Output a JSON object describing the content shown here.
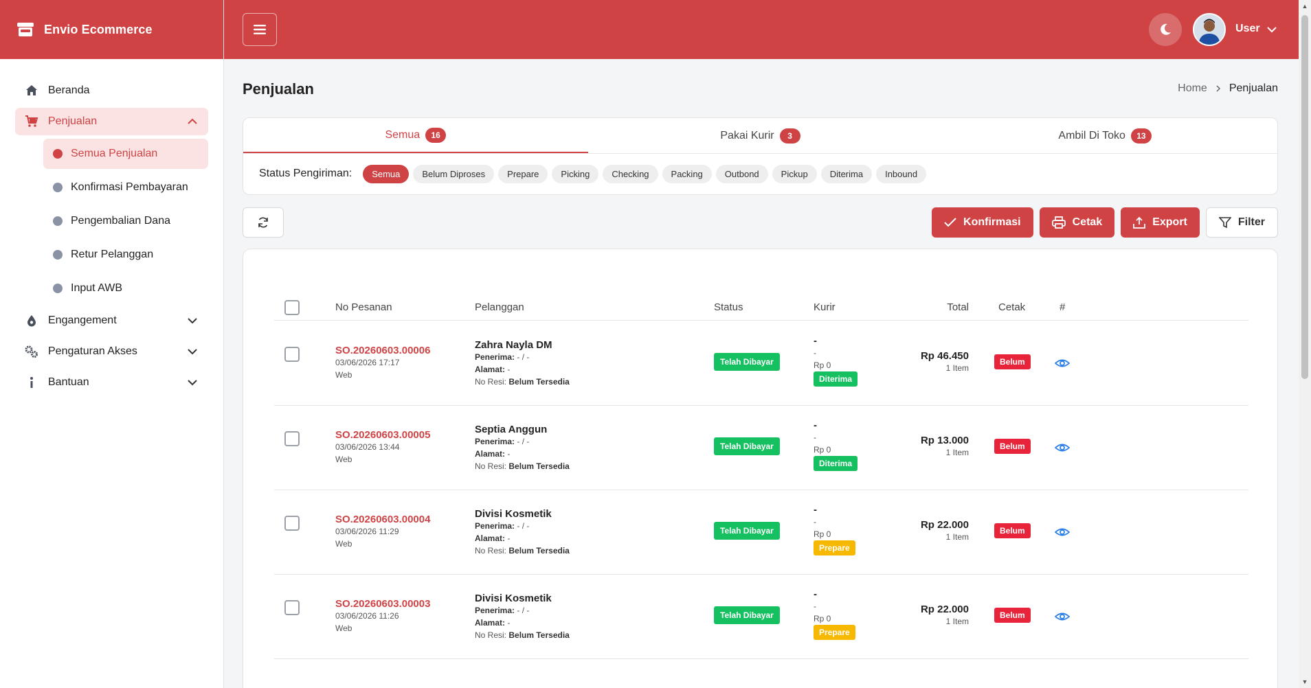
{
  "brand": {
    "name": "Envio Ecommerce"
  },
  "sidebar": {
    "items": [
      {
        "label": "Beranda"
      },
      {
        "label": "Penjualan"
      },
      {
        "label": "Engangement"
      },
      {
        "label": "Pengaturan Akses"
      },
      {
        "label": "Bantuan"
      }
    ],
    "sub_items": [
      {
        "label": "Semua Penjualan"
      },
      {
        "label": "Konfirmasi Pembayaran"
      },
      {
        "label": "Pengembalian Dana"
      },
      {
        "label": "Retur Pelanggan"
      },
      {
        "label": "Input AWB"
      }
    ]
  },
  "topbar": {
    "user": "User"
  },
  "page": {
    "title": "Penjualan",
    "breadcrumb": [
      "Home",
      "Penjualan"
    ]
  },
  "tabs": [
    {
      "label": "Semua",
      "count": "16"
    },
    {
      "label": "Pakai Kurir",
      "count": "3"
    },
    {
      "label": "Ambil Di Toko",
      "count": "13"
    }
  ],
  "status_filter": {
    "label": "Status Pengiriman:",
    "options": [
      "Semua",
      "Belum Diproses",
      "Prepare",
      "Picking",
      "Checking",
      "Packing",
      "Outbond",
      "Pickup",
      "Diterima",
      "Inbound"
    ]
  },
  "actions": {
    "konfirmasi": "Konfirmasi",
    "cetak": "Cetak",
    "export": "Export",
    "filter": "Filter"
  },
  "table": {
    "headers": {
      "no_pesanan": "No Pesanan",
      "pelanggan": "Pelanggan",
      "status": "Status",
      "kurir": "Kurir",
      "total": "Total",
      "cetak": "Cetak",
      "hash": "#"
    },
    "labels": {
      "penerima": "Penerima:",
      "alamat": "Alamat:",
      "no_resi": "No Resi:"
    },
    "rows": [
      {
        "order_no": "SO.20260603.00006",
        "datetime": "03/06/2026 17:17",
        "channel": "Web",
        "customer": "Zahra Nayla DM",
        "penerima": "- / -",
        "alamat": "-",
        "no_resi": "Belum Tersedia",
        "status": "Telah Dibayar",
        "kurir_name": "-",
        "kurir_service": "-",
        "kurir_cost": "Rp 0",
        "kurir_status": "Diterima",
        "total": "Rp 46.450",
        "items": "1 Item",
        "cetak": "Belum"
      },
      {
        "order_no": "SO.20260603.00005",
        "datetime": "03/06/2026 13:44",
        "channel": "Web",
        "customer": "Septia Anggun",
        "penerima": "- / -",
        "alamat": "-",
        "no_resi": "Belum Tersedia",
        "status": "Telah Dibayar",
        "kurir_name": "-",
        "kurir_service": "-",
        "kurir_cost": "Rp 0",
        "kurir_status": "Diterima",
        "total": "Rp 13.000",
        "items": "1 Item",
        "cetak": "Belum"
      },
      {
        "order_no": "SO.20260603.00004",
        "datetime": "03/06/2026 11:29",
        "channel": "Web",
        "customer": "Divisi Kosmetik",
        "penerima": "- / -",
        "alamat": "-",
        "no_resi": "Belum Tersedia",
        "status": "Telah Dibayar",
        "kurir_name": "-",
        "kurir_service": "-",
        "kurir_cost": "Rp 0",
        "kurir_status": "Prepare",
        "total": "Rp 22.000",
        "items": "1 Item",
        "cetak": "Belum"
      },
      {
        "order_no": "SO.20260603.00003",
        "datetime": "03/06/2026 11:26",
        "channel": "Web",
        "customer": "Divisi Kosmetik",
        "penerima": "- / -",
        "alamat": "-",
        "no_resi": "Belum Tersedia",
        "status": "Telah Dibayar",
        "kurir_name": "-",
        "kurir_service": "-",
        "kurir_cost": "Rp 0",
        "kurir_status": "Prepare",
        "total": "Rp 22.000",
        "items": "1 Item",
        "cetak": "Belum"
      }
    ]
  },
  "colors": {
    "accent": "#cf4345",
    "success": "#14c060",
    "warning": "#f7b800",
    "danger": "#e8243a",
    "link": "#2b7fe6"
  }
}
